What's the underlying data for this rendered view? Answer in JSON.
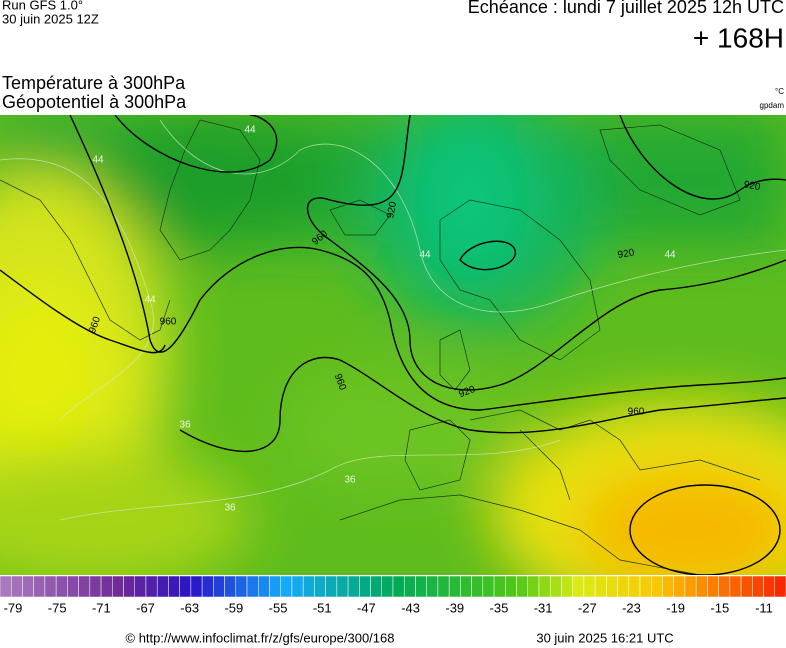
{
  "header": {
    "run": "Run GFS 1.0°",
    "run_date": "30 juin 2025 12Z",
    "echeance": "Echéance : lundi 7 juillet 2025 12h UTC",
    "lead": "+ 168H",
    "title_temp": "Température à 300hPa",
    "title_geo": "Géopotentiel à 300hPa",
    "unit_temp": "°C",
    "unit_geo": "gpdam"
  },
  "contour_labels": [
    "960",
    "960",
    "960",
    "960",
    "920",
    "920",
    "920",
    "920",
    "960"
  ],
  "isotherm_labels": [
    "44",
    "44",
    "44",
    "44",
    "44",
    "36",
    "36",
    "36"
  ],
  "colorbar": {
    "labels": [
      "-79",
      "-75",
      "-71",
      "-67",
      "-63",
      "-59",
      "-55",
      "-51",
      "-47",
      "-43",
      "-39",
      "-35",
      "-31",
      "-27",
      "-23",
      "-19",
      "-15",
      "-11"
    ]
  },
  "footer": {
    "url": "© http://www.infoclimat.fr/z/gfs/europe/300/168",
    "stamp": "30 juin 2025 16:21 UTC"
  }
}
